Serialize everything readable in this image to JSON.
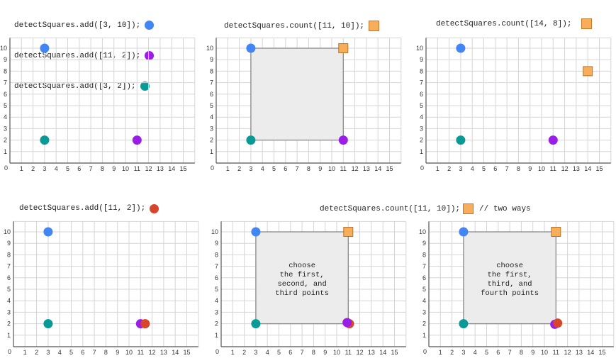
{
  "colors": {
    "blue": "#4285f4",
    "purple": "#9a1ee8",
    "teal": "#0a9a96",
    "red": "#d9452b",
    "orange": "#f7ad5a",
    "square_fill": "#ececec",
    "grid": "#d5d5d5",
    "axis": "#555555"
  },
  "code": {
    "add_lines": [
      "detectSquares.add([3, 10]);",
      "detectSquares.add([11, 2]);",
      "detectSquares.add([3, 2]);"
    ],
    "count_1": "detectSquares.count([11, 10]);",
    "count_2": "detectSquares.count([14, 8]);",
    "add_4": "detectSquares.add([11, 2]);",
    "count_3": "detectSquares.count([11, 10]);",
    "count_3_comment": "// two ways"
  },
  "axes": {
    "origin_label": "0",
    "x_ticks": [
      "1",
      "2",
      "3",
      "4",
      "5",
      "6",
      "7",
      "8",
      "9",
      "10",
      "11",
      "12",
      "13",
      "14",
      "15"
    ],
    "y_ticks": [
      "1",
      "2",
      "3",
      "4",
      "5",
      "6",
      "7",
      "8",
      "9",
      "10"
    ]
  },
  "panels": [
    {
      "points": [
        {
          "x": 3,
          "y": 10,
          "color": "blue",
          "shape": "circle"
        },
        {
          "x": 11,
          "y": 2,
          "color": "purple",
          "shape": "circle"
        },
        {
          "x": 3,
          "y": 2,
          "color": "teal",
          "shape": "circle"
        }
      ]
    },
    {
      "square": {
        "x1": 3,
        "y1": 2,
        "x2": 11,
        "y2": 10
      },
      "points": [
        {
          "x": 3,
          "y": 10,
          "color": "blue",
          "shape": "circle"
        },
        {
          "x": 11,
          "y": 2,
          "color": "purple",
          "shape": "circle"
        },
        {
          "x": 3,
          "y": 2,
          "color": "teal",
          "shape": "circle"
        },
        {
          "x": 11,
          "y": 10,
          "color": "orange",
          "shape": "square"
        }
      ]
    },
    {
      "points": [
        {
          "x": 3,
          "y": 10,
          "color": "blue",
          "shape": "circle"
        },
        {
          "x": 11,
          "y": 2,
          "color": "purple",
          "shape": "circle"
        },
        {
          "x": 3,
          "y": 2,
          "color": "teal",
          "shape": "circle"
        },
        {
          "x": 14,
          "y": 8,
          "color": "orange",
          "shape": "square"
        }
      ]
    },
    {
      "points": [
        {
          "x": 3,
          "y": 10,
          "color": "blue",
          "shape": "circle"
        },
        {
          "x": 11,
          "y": 2,
          "color": "purple",
          "shape": "circle"
        },
        {
          "x": 3,
          "y": 2,
          "color": "teal",
          "shape": "circle"
        },
        {
          "x": 11.4,
          "y": 2,
          "color": "red",
          "shape": "circle"
        }
      ]
    },
    {
      "square": {
        "x1": 3,
        "y1": 2,
        "x2": 11,
        "y2": 10
      },
      "note": [
        "choose",
        "the first,",
        "second, and",
        "third points"
      ],
      "points": [
        {
          "x": 3,
          "y": 10,
          "color": "blue",
          "shape": "circle"
        },
        {
          "x": 3,
          "y": 2,
          "color": "teal",
          "shape": "circle"
        },
        {
          "x": 11.1,
          "y": 2,
          "color": "red",
          "shape": "circle"
        },
        {
          "x": 10.9,
          "y": 2.1,
          "color": "purple",
          "shape": "circle"
        },
        {
          "x": 11,
          "y": 10,
          "color": "orange",
          "shape": "square"
        }
      ]
    },
    {
      "square": {
        "x1": 3,
        "y1": 2,
        "x2": 11,
        "y2": 10
      },
      "note": [
        "choose",
        "the first,",
        "third, and",
        "fourth points"
      ],
      "points": [
        {
          "x": 3,
          "y": 10,
          "color": "blue",
          "shape": "circle"
        },
        {
          "x": 3,
          "y": 2,
          "color": "teal",
          "shape": "circle"
        },
        {
          "x": 10.9,
          "y": 1.95,
          "color": "purple",
          "shape": "circle"
        },
        {
          "x": 11.15,
          "y": 2.05,
          "color": "red",
          "shape": "circle"
        },
        {
          "x": 11,
          "y": 10,
          "color": "orange",
          "shape": "square"
        }
      ]
    }
  ]
}
